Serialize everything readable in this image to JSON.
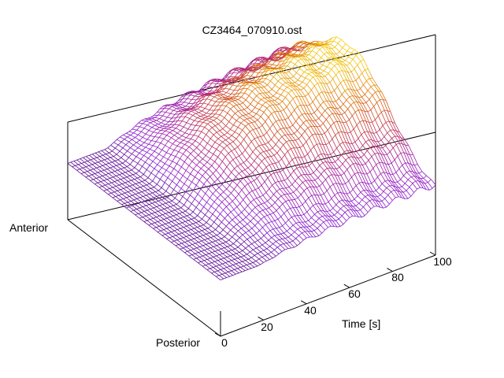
{
  "chart_data": {
    "type": "surface-3d-wireframe",
    "title": "CZ3464_070910.ost",
    "x_axis": {
      "label": "Time [s]",
      "range": [
        0,
        100
      ],
      "ticks": [
        "0",
        "20",
        "40",
        "60",
        "80",
        "100"
      ]
    },
    "y_axis": {
      "labels": {
        "start": "Anterior",
        "end": "Posterior"
      }
    },
    "z_axis": {
      "range": [
        0,
        1
      ]
    },
    "grid": false,
    "legend": "none",
    "colormap": [
      "#4b0a7a",
      "#8a1ed2",
      "#a11ea6",
      "#c43a4c",
      "#dc6a10",
      "#f2c20e",
      "#ffe31a"
    ],
    "approx_max_value": 1.0
  }
}
